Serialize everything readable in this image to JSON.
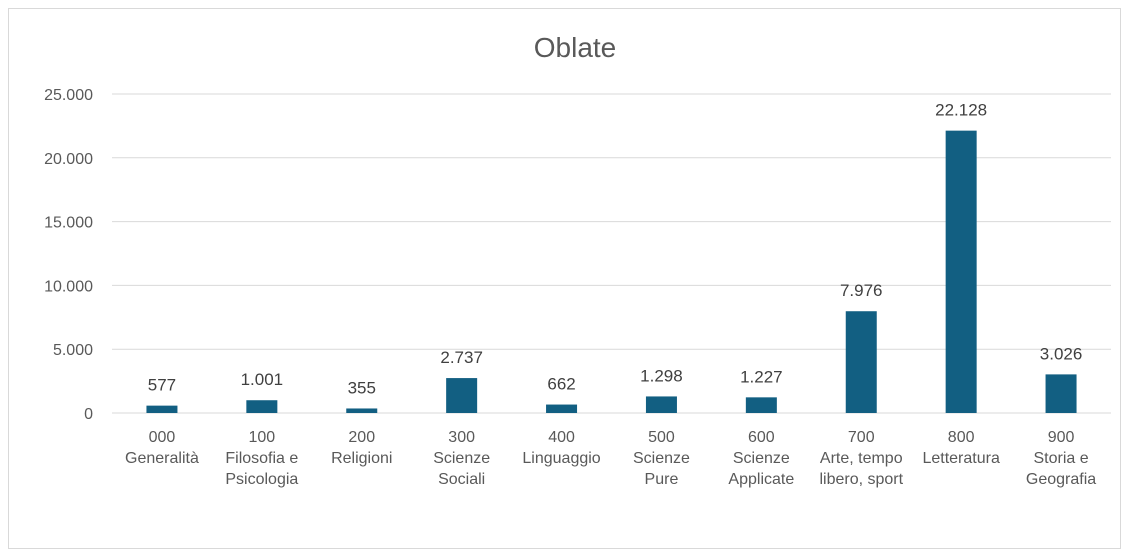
{
  "chart_data": {
    "type": "bar",
    "title": "Oblate",
    "categories": [
      [
        "000",
        "Generalità"
      ],
      [
        "100",
        "Filosofia e",
        "Psicologia"
      ],
      [
        "200",
        "Religioni"
      ],
      [
        "300",
        "Scienze",
        "Sociali"
      ],
      [
        "400",
        "Linguaggio"
      ],
      [
        "500",
        "Scienze",
        "Pure"
      ],
      [
        "600",
        "Scienze",
        "Applicate"
      ],
      [
        "700",
        "Arte, tempo",
        "libero, sport"
      ],
      [
        "800",
        "Letteratura"
      ],
      [
        "900",
        "Storia e",
        "Geografia"
      ]
    ],
    "values": [
      577,
      1001,
      355,
      2737,
      662,
      1298,
      1227,
      7976,
      22128,
      3026
    ],
    "data_labels": [
      "577",
      "1.001",
      "355",
      "2.737",
      "662",
      "1.298",
      "1.227",
      "7.976",
      "22.128",
      "3.026"
    ],
    "yticks": [
      0,
      5000,
      10000,
      15000,
      20000,
      25000
    ],
    "ytick_labels": [
      "0",
      "5.000",
      "10.000",
      "15.000",
      "20.000",
      "25.000"
    ],
    "ylim": [
      0,
      25000
    ],
    "grid": true,
    "legend": "none",
    "bar_color": "#125f82",
    "grid_color": "#d9d9d9"
  }
}
